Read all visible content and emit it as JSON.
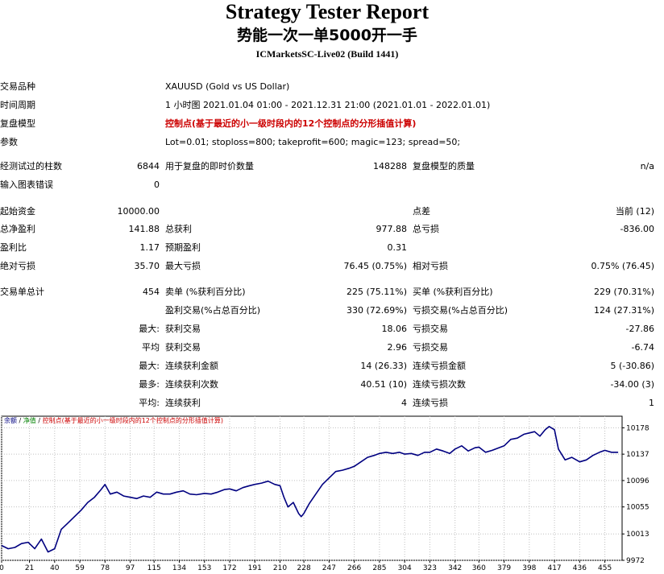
{
  "header": {
    "title": "Strategy Tester Report",
    "subtitle": "势能一次一单5000开一手",
    "server": "ICMarketsSC-Live02 (Build 1441)"
  },
  "settings": {
    "symbol_label": "交易品种",
    "symbol_value": "XAUUSD (Gold vs US Dollar)",
    "period_label": "时间周期",
    "period_value": "1 小时图 2021.01.04 01:00 - 2021.12.31 21:00 (2021.01.01 - 2022.01.01)",
    "model_label": "复盘模型",
    "model_value": "控制点(基于最近的小一级时段内的12个控制点的分形插值计算)",
    "params_label": "参数",
    "params_value": "Lot=0.01; stoploss=800; takeprofit=600; magic=123; spread=50;"
  },
  "bars": {
    "bars_label": "经测试过的柱数",
    "bars_value": "6844",
    "ticks_label": "用于复盘的即时价数量",
    "ticks_value": "148288",
    "quality_label": "复盘模型的质量",
    "quality_value": "n/a",
    "errors_label": "输入图表错误",
    "errors_value": "0"
  },
  "results": {
    "deposit_label": "起始资金",
    "deposit_value": "10000.00",
    "spread_label": "点差",
    "spread_value": "当前 (12)",
    "net_label": "总净盈利",
    "net_value": "141.88",
    "gross_profit_label": "总获利",
    "gross_profit_value": "977.88",
    "gross_loss_label": "总亏损",
    "gross_loss_value": "-836.00",
    "pf_label": "盈利比",
    "pf_value": "1.17",
    "expected_label": "预期盈利",
    "expected_value": "0.31",
    "abs_dd_label": "绝对亏损",
    "abs_dd_value": "35.70",
    "max_dd_label": "最大亏损",
    "max_dd_value": "76.45 (0.75%)",
    "rel_dd_label": "相对亏损",
    "rel_dd_value": "0.75% (76.45)"
  },
  "trades": {
    "total_label": "交易单总计",
    "total_value": "454",
    "short_label": "卖单 (%获利百分比)",
    "short_value": "225 (75.11%)",
    "long_label": "买单 (%获利百分比)",
    "long_value": "229 (70.31%)",
    "profit_trades_label": "盈利交易(%占总百分比)",
    "profit_trades_value": "330 (72.69%)",
    "loss_trades_label": "亏损交易(%占总百分比)",
    "loss_trades_value": "124 (27.31%)",
    "largest_label": "最大:",
    "largest_profit_label": "获利交易",
    "largest_profit_value": "18.06",
    "largest_loss_label": "亏损交易",
    "largest_loss_value": "-27.86",
    "average_label": "平均",
    "average_profit_label": "获利交易",
    "average_profit_value": "2.96",
    "average_loss_label": "亏损交易",
    "average_loss_value": "-6.74",
    "max_cons_label": "最大:",
    "max_cons_wins_label": "连续获利金额",
    "max_cons_wins_value": "14 (26.33)",
    "max_cons_losses_label": "连续亏损金额",
    "max_cons_losses_value": "5 (-30.86)",
    "maximal_label": "最多:",
    "maximal_profit_label": "连续获利次数",
    "maximal_profit_value": "40.51 (10)",
    "maximal_loss_label": "连续亏损次数",
    "maximal_loss_value": "-34.00 (3)",
    "avg_cons_label": "平均:",
    "avg_cons_wins_label": "连续获利",
    "avg_cons_wins_value": "4",
    "avg_cons_losses_label": "连续亏损",
    "avg_cons_losses_value": "1"
  },
  "chart_data": {
    "type": "line",
    "legend": [
      "余额",
      "净值",
      "控制点(基于最近的小一级时段内的12个控制点的分形插值计算)"
    ],
    "legend_separator": "/",
    "x_ticks": [
      0,
      21,
      40,
      59,
      78,
      97,
      115,
      134,
      153,
      172,
      191,
      210,
      228,
      247,
      266,
      285,
      304,
      323,
      342,
      360,
      379,
      398,
      417,
      436,
      455
    ],
    "y_ticks": [
      9972,
      10013,
      10055,
      10096,
      10137,
      10178
    ],
    "xlim": [
      0,
      468
    ],
    "ylim": [
      9972,
      10196
    ],
    "grid": true,
    "colors": {
      "line": "#000080",
      "grid": "#c0c0c0",
      "axis": "#000000"
    },
    "series": [
      {
        "x": [
          0,
          5,
          10,
          15,
          20,
          25,
          30,
          35,
          40,
          45,
          50,
          55,
          60,
          65,
          70,
          75,
          78,
          82,
          87,
          92,
          97,
          102,
          107,
          112,
          117,
          122,
          127,
          132,
          137,
          142,
          147,
          153,
          158,
          163,
          168,
          172,
          177,
          182,
          187,
          191,
          196,
          201,
          206,
          210,
          213,
          216,
          220,
          224,
          226,
          228,
          232,
          237,
          242,
          247,
          252,
          257,
          262,
          266,
          271,
          276,
          281,
          285,
          290,
          295,
          300,
          304,
          309,
          314,
          319,
          323,
          328,
          333,
          338,
          342,
          347,
          352,
          357,
          360,
          365,
          370,
          375,
          379,
          384,
          389,
          394,
          398,
          402,
          406,
          410,
          413,
          417,
          420,
          425,
          430,
          436,
          441,
          446,
          451,
          455,
          460,
          465
        ],
        "y": [
          9995,
          9990,
          9992,
          9998,
          10000,
          9990,
          10005,
          9985,
          9990,
          10020,
          10030,
          10040,
          10050,
          10062,
          10070,
          10082,
          10090,
          10075,
          10078,
          10072,
          10070,
          10068,
          10072,
          10070,
          10078,
          10075,
          10075,
          10078,
          10080,
          10075,
          10074,
          10076,
          10075,
          10078,
          10082,
          10083,
          10080,
          10085,
          10088,
          10090,
          10092,
          10095,
          10090,
          10088,
          10070,
          10055,
          10062,
          10045,
          10040,
          10045,
          10060,
          10075,
          10090,
          10100,
          10110,
          10112,
          10115,
          10118,
          10125,
          10132,
          10135,
          10138,
          10140,
          10138,
          10140,
          10137,
          10138,
          10135,
          10140,
          10140,
          10145,
          10142,
          10138,
          10145,
          10150,
          10142,
          10147,
          10148,
          10140,
          10143,
          10147,
          10150,
          10160,
          10162,
          10168,
          10170,
          10172,
          10165,
          10175,
          10180,
          10175,
          10145,
          10128,
          10132,
          10125,
          10128,
          10135,
          10140,
          10143,
          10140,
          10140
        ]
      }
    ]
  }
}
